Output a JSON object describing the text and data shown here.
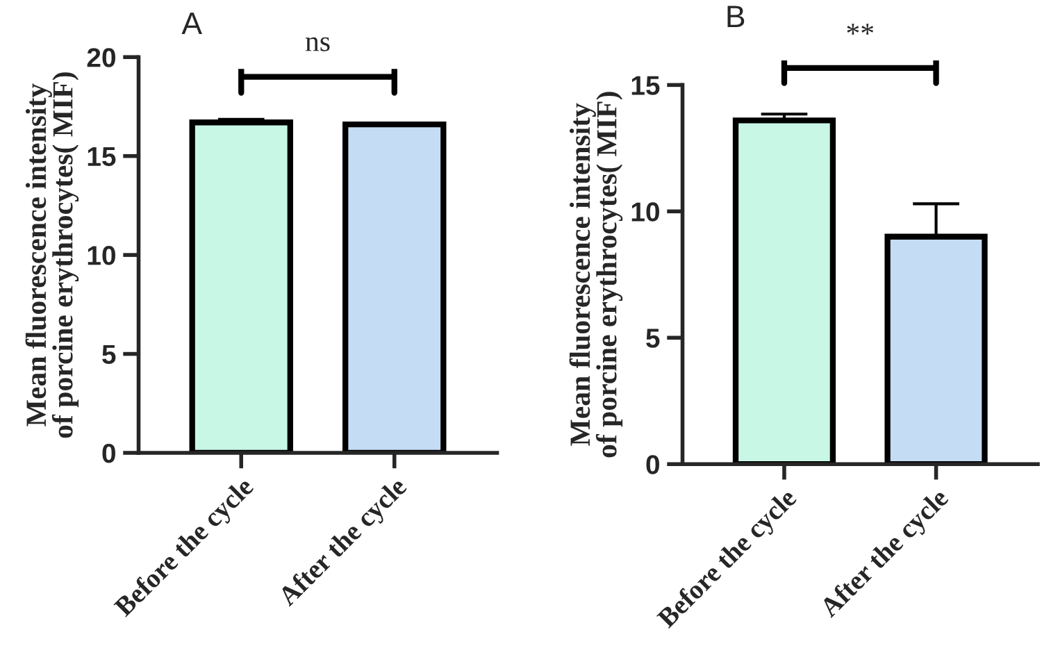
{
  "chart_data": [
    {
      "type": "bar",
      "title": "A",
      "ylabel": "Mean fluorescence intensity\nof porcine erythrocytes( MIF)",
      "categories": [
        "Before the cycle",
        "After the cycle"
      ],
      "values": [
        16.7,
        16.6
      ],
      "colors": [
        "#c8f7e6",
        "#c5dcf5"
      ],
      "errors": [
        [
          16.7,
          16.85
        ],
        [
          16.6,
          16.65
        ]
      ],
      "ylim": [
        0,
        20
      ],
      "yticks": [
        0,
        5,
        10,
        15,
        20
      ],
      "grid": false,
      "annotations": [
        "ns"
      ]
    },
    {
      "type": "bar",
      "title": "B",
      "ylabel": "Mean fluorescence intensity\nof porcine erythrocytes( MIF)",
      "categories": [
        "Before the cycle",
        "After the cycle"
      ],
      "values": [
        13.6,
        9.0
      ],
      "colors": [
        "#c8f7e6",
        "#c5dcf5"
      ],
      "errors": [
        [
          13.6,
          13.85
        ],
        [
          9.0,
          10.3
        ]
      ],
      "ylim": [
        0,
        15
      ],
      "yticks": [
        0,
        5,
        10,
        15
      ],
      "grid": false,
      "annotations": [
        "**"
      ]
    }
  ]
}
